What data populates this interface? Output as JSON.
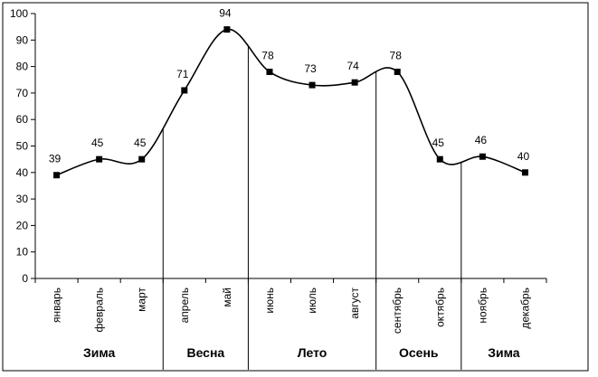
{
  "chart_data": {
    "type": "line",
    "categories": [
      "январь",
      "февраль",
      "март",
      "апрель",
      "май",
      "июнь",
      "июль",
      "август",
      "сентябрь",
      "октябрь",
      "ноябрь",
      "декабрь"
    ],
    "values": [
      39,
      45,
      45,
      71,
      94,
      78,
      73,
      74,
      78,
      45,
      46,
      40
    ],
    "ylim": [
      0,
      100
    ],
    "ytick_step": 10,
    "grid": false,
    "legend": "none",
    "smooth": true,
    "seasons": [
      {
        "label": "Зима",
        "from": 0,
        "to": 2
      },
      {
        "label": "Весна",
        "from": 3,
        "to": 4
      },
      {
        "label": "Лето",
        "from": 5,
        "to": 7
      },
      {
        "label": "Осень",
        "from": 8,
        "to": 9
      },
      {
        "label": "Зима",
        "from": 10,
        "to": 11
      }
    ],
    "line_color": "#000000",
    "marker_color": "#000000"
  }
}
